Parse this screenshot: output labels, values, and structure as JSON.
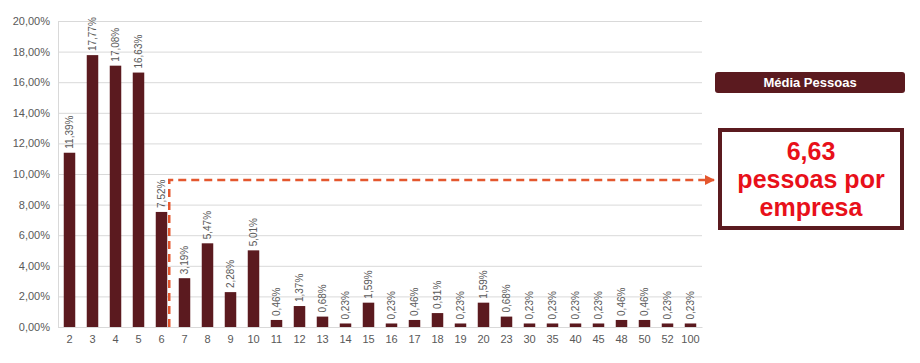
{
  "chart_data": {
    "type": "bar",
    "categories": [
      "2",
      "3",
      "4",
      "5",
      "6",
      "7",
      "8",
      "9",
      "10",
      "11",
      "12",
      "13",
      "14",
      "15",
      "16",
      "17",
      "18",
      "19",
      "20",
      "23",
      "30",
      "35",
      "40",
      "45",
      "48",
      "50",
      "52",
      "100"
    ],
    "values": [
      11.39,
      17.77,
      17.08,
      16.63,
      7.52,
      3.19,
      5.47,
      2.28,
      5.01,
      0.46,
      1.37,
      0.68,
      0.23,
      1.59,
      0.23,
      0.46,
      0.91,
      0.23,
      1.59,
      0.68,
      0.23,
      0.23,
      0.23,
      0.23,
      0.46,
      0.46,
      0.23,
      0.23
    ],
    "value_labels": [
      "11,39%",
      "17,77%",
      "17,08%",
      "16,63%",
      "7,52%",
      "3,19%",
      "5,47%",
      "2,28%",
      "5,01%",
      "0,46%",
      "1,37%",
      "0,68%",
      "0,23%",
      "1,59%",
      "0,23%",
      "0,46%",
      "0,91%",
      "0,23%",
      "1,59%",
      "0,68%",
      "0,23%",
      "0,23%",
      "0,23%",
      "0,23%",
      "0,46%",
      "0,46%",
      "0,23%",
      "0,23%"
    ],
    "color": "#5b1a1f",
    "ylim": [
      0,
      20
    ],
    "yticks": [
      {
        "value": 0,
        "label": "0,00%"
      },
      {
        "value": 2,
        "label": "2,00%"
      },
      {
        "value": 4,
        "label": "4,00%"
      },
      {
        "value": 6,
        "label": "6,00%"
      },
      {
        "value": 8,
        "label": "8,00%"
      },
      {
        "value": 10,
        "label": "10,00%"
      },
      {
        "value": 12,
        "label": "12,00%"
      },
      {
        "value": 14,
        "label": "14,00%"
      },
      {
        "value": 16,
        "label": "16,00%"
      },
      {
        "value": 18,
        "label": "18,00%"
      },
      {
        "value": 20,
        "label": "20,00%"
      }
    ],
    "grid": true,
    "data_labels": true,
    "annotation": {
      "title": "Média Pessoas",
      "lines": [
        "6,63",
        "pessoas por",
        "empresa"
      ]
    }
  }
}
